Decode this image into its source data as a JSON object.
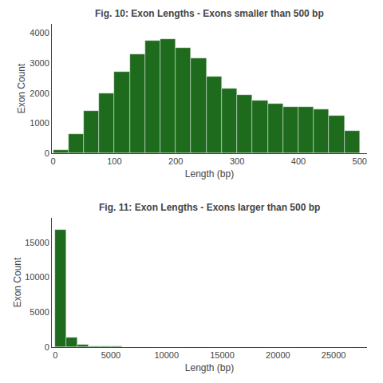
{
  "chart_data": [
    {
      "type": "histogram",
      "title": "Fig. 10: Exon Lengths - Exons smaller than 500 bp",
      "x_label": "Length (bp)",
      "y_label": "Exon Count",
      "bins": [
        0,
        25,
        50,
        75,
        100,
        125,
        150,
        175,
        200,
        225,
        250,
        275,
        300,
        325,
        350,
        375,
        400,
        425,
        450,
        475,
        500
      ],
      "values": [
        100,
        650,
        1400,
        2000,
        2700,
        3300,
        3750,
        3800,
        3500,
        3150,
        2550,
        2150,
        1950,
        1750,
        1650,
        1550,
        1550,
        1450,
        1250,
        750
      ],
      "color": "#1e6b1e",
      "xlim": [
        -2,
        512
      ],
      "ylim": [
        0,
        4300
      ],
      "xticks": [
        0,
        100,
        200,
        300,
        400,
        500
      ],
      "yticks": [
        0,
        1000,
        2000,
        3000,
        4000
      ],
      "grid": false
    },
    {
      "type": "histogram",
      "title": "Fig. 11: Exon Lengths - Exons larger than 500 bp",
      "x_label": "Length (bp)",
      "y_label": "Exon Count",
      "bins": [
        0,
        1000,
        2000,
        3000,
        4000,
        5000,
        6000,
        7000,
        8000,
        9000,
        10000,
        11000,
        12000,
        13000,
        14000,
        15000,
        16000,
        17000,
        18000,
        19000,
        20000,
        21000,
        22000,
        23000,
        24000,
        25000,
        26000,
        27000
      ],
      "values": [
        16800,
        1400,
        350,
        160,
        90,
        60,
        45,
        35,
        28,
        22,
        18,
        15,
        13,
        11,
        10,
        9,
        8,
        7,
        6,
        6,
        5,
        5,
        4,
        4,
        3,
        3,
        3
      ],
      "color": "#1e6b1e",
      "xlim": [
        -300,
        28000
      ],
      "ylim": [
        0,
        18500
      ],
      "xticks": [
        0,
        5000,
        10000,
        15000,
        20000,
        25000
      ],
      "yticks": [
        0,
        5000,
        10000,
        15000
      ],
      "grid": false
    }
  ]
}
